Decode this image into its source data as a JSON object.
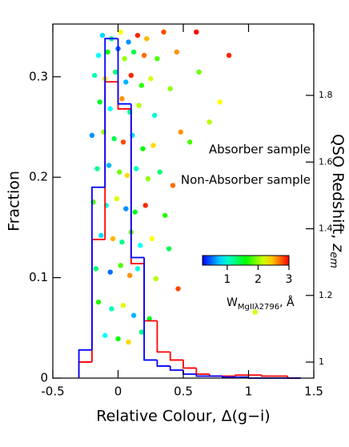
{
  "chart_data": {
    "type": "histogram_scatter",
    "xlabel": "Relative Colour, Δ(g−i)",
    "ylabel": "Fraction",
    "y2label": {
      "text": "QSO Redshift, ",
      "var": "z",
      "sub": "em"
    },
    "xlim": [
      -0.5,
      1.5
    ],
    "xticks": [
      -0.5,
      0,
      0.5,
      1,
      1.5
    ],
    "ylim": [
      0,
      0.3525
    ],
    "yticks": [
      0,
      0.1,
      0.2,
      0.3
    ],
    "y2lim": [
      0.952,
      2.014
    ],
    "y2ticks": [
      1,
      1.2,
      1.4,
      1.6,
      1.8
    ],
    "bins": [
      -0.3,
      -0.2,
      -0.1,
      0,
      0.1,
      0.2,
      0.3,
      0.4,
      0.5,
      0.6,
      0.7,
      0.8,
      0.9,
      1.0,
      1.1,
      1.2,
      1.3,
      1.4
    ],
    "series": [
      {
        "name": "Absorber sample",
        "color": "#ff0000",
        "values": [
          0.016,
          0.138,
          0.295,
          0.268,
          0.114,
          0.057,
          0.026,
          0.018,
          0.01,
          0.004,
          0.002,
          0.002,
          0.003,
          0.003,
          0.002,
          0.002,
          0
        ]
      },
      {
        "name": "Non-Absorber sample",
        "color": "#0000ff",
        "values": [
          0.028,
          0.19,
          0.338,
          0.273,
          0.12,
          0.018,
          0.012,
          0.008,
          0.004,
          0.002,
          0.002,
          0.001,
          0.001,
          0,
          0,
          0,
          0
        ]
      }
    ],
    "scatter": {
      "axis": "y2",
      "colormap": "rainbow",
      "x": [
        -0.12,
        -0.05,
        0.02,
        0.08,
        0.15,
        0.22,
        0.35,
        0.6,
        -0.15,
        -0.08,
        0.0,
        0.05,
        0.12,
        0.2,
        0.3,
        0.45,
        0.85,
        0.62,
        -0.18,
        -0.1,
        -0.02,
        0.06,
        0.1,
        0.18,
        0.25,
        0.4,
        -0.14,
        -0.06,
        0.03,
        0.09,
        0.16,
        0.28,
        0.78,
        0.7,
        -0.2,
        -0.11,
        -0.03,
        0.04,
        0.11,
        0.19,
        0.27,
        0.55,
        0.48,
        -0.16,
        -0.07,
        0.01,
        0.07,
        0.14,
        0.23,
        0.32,
        0.42,
        -0.19,
        -0.09,
        -0.01,
        0.06,
        0.13,
        0.21,
        0.36,
        -0.13,
        -0.04,
        0.03,
        0.1,
        0.17,
        0.26,
        0.39,
        -0.17,
        -0.06,
        0.02,
        0.09,
        0.15,
        0.29,
        0.46,
        -0.15,
        -0.05,
        0.04,
        0.12,
        0.24,
        1.05,
        -0.1,
        0.0,
        0.08,
        0.18
      ],
      "values": [
        1.98,
        1.97,
        1.99,
        1.96,
        1.98,
        1.97,
        1.99,
        1.99,
        1.92,
        1.93,
        1.94,
        1.91,
        1.93,
        1.92,
        1.91,
        1.93,
        1.92,
        1.87,
        1.86,
        1.85,
        1.87,
        1.84,
        1.86,
        1.83,
        1.85,
        1.82,
        1.78,
        1.76,
        1.79,
        1.75,
        1.77,
        1.74,
        1.78,
        1.72,
        1.68,
        1.69,
        1.67,
        1.66,
        1.68,
        1.64,
        1.65,
        1.66,
        1.69,
        1.58,
        1.59,
        1.57,
        1.56,
        1.58,
        1.55,
        1.57,
        1.53,
        1.48,
        1.47,
        1.49,
        1.46,
        1.45,
        1.47,
        1.44,
        1.38,
        1.37,
        1.36,
        1.39,
        1.35,
        1.37,
        1.34,
        1.28,
        1.27,
        1.29,
        1.26,
        1.28,
        1.25,
        1.22,
        1.18,
        1.16,
        1.17,
        1.14,
        1.13,
        1.15,
        1.08,
        1.07,
        1.06,
        1.09
      ],
      "w": [
        0.8,
        1.2,
        2.3,
        0.6,
        2.9,
        2.5,
        2.8,
        3.0,
        0.9,
        1.6,
        0.5,
        2.0,
        1.4,
        2.7,
        1.8,
        2.6,
        2.9,
        1.9,
        1.1,
        2.4,
        1.3,
        0.7,
        2.9,
        1.7,
        2.2,
        2.0,
        1.5,
        0.9,
        2.6,
        1.2,
        2.1,
        1.0,
        2.3,
        2.1,
        0.6,
        2.0,
        1.4,
        2.8,
        0.8,
        1.6,
        2.4,
        1.8,
        2.6,
        1.2,
        0.7,
        1.9,
        2.4,
        1.1,
        2.0,
        1.3,
        2.7,
        1.8,
        1.0,
        2.2,
        0.6,
        1.5,
        2.9,
        1.7,
        0.8,
        2.5,
        1.2,
        1.9,
        0.9,
        2.3,
        1.4,
        1.3,
        0.5,
        1.8,
        2.6,
        1.0,
        2.1,
        2.8,
        1.7,
        1.1,
        2.2,
        0.7,
        1.5,
        2.2,
        0.9,
        1.6,
        2.4,
        1.2
      ]
    },
    "colorbar": {
      "clim": [
        0.2,
        3.0
      ],
      "cticks": [
        1,
        2,
        3
      ],
      "label": {
        "main": "W",
        "sub": "MgIIλ2796",
        "unit": ", Å"
      }
    }
  }
}
